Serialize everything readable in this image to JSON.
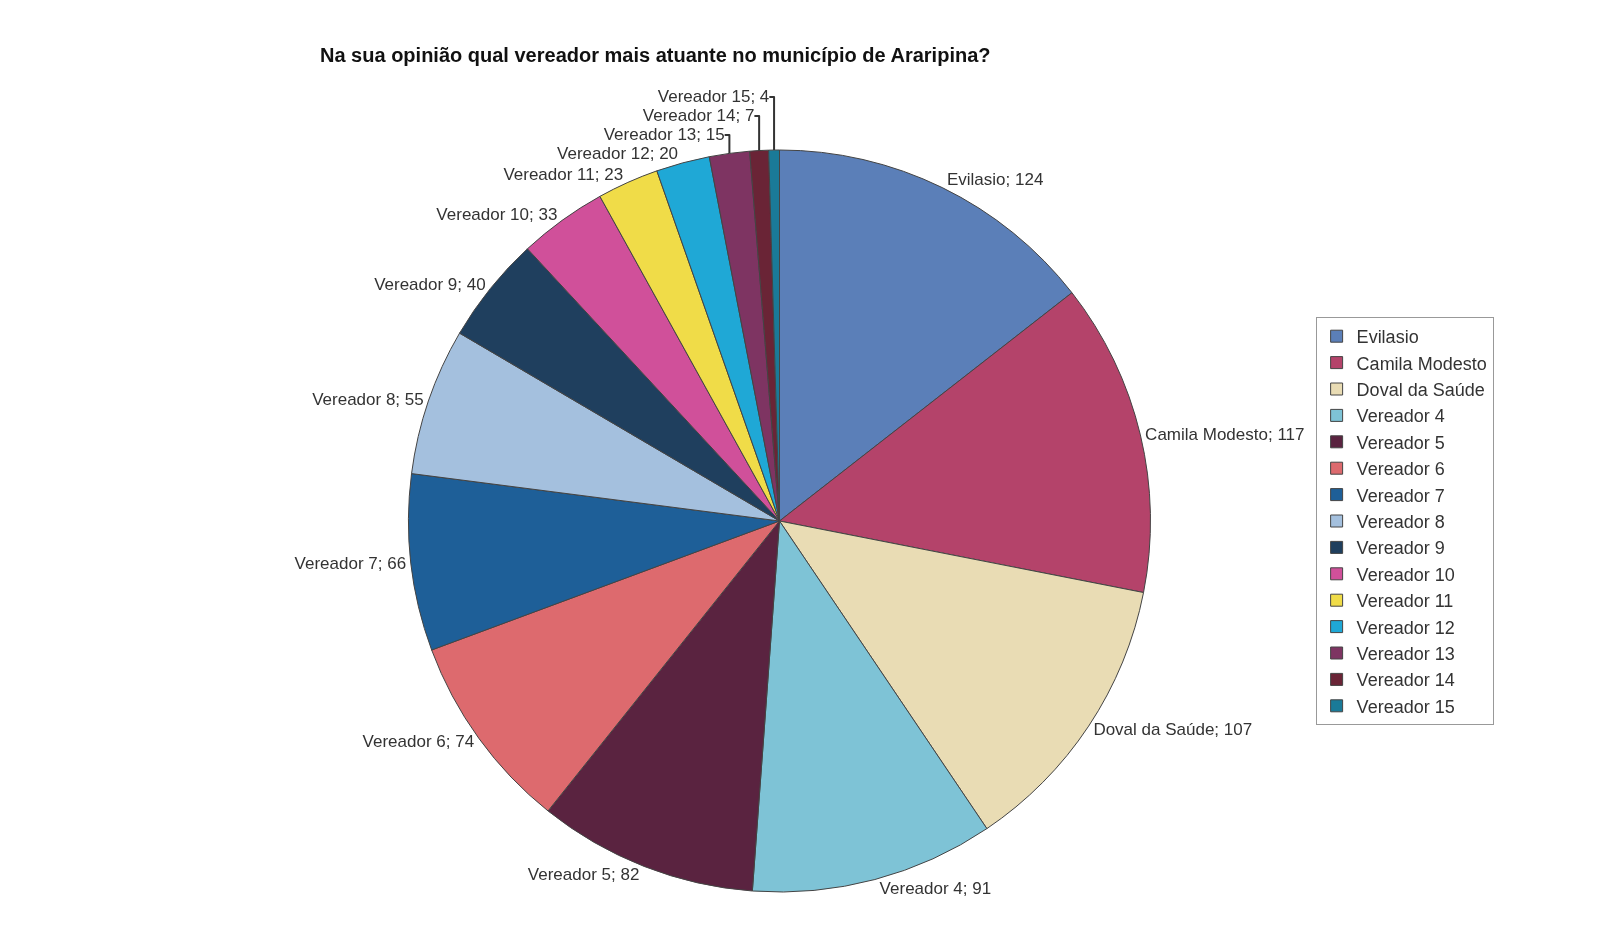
{
  "chart_data": {
    "type": "pie",
    "title": "Na sua opinião qual vereador mais atuante no município de Araripina?",
    "categories": [
      "Evilasio",
      "Camila Modesto",
      "Doval da Saúde",
      "Vereador 4",
      "Vereador 5",
      "Vereador 6",
      "Vereador 7",
      "Vereador 8",
      "Vereador 9",
      "Vereador 10",
      "Vereador 11",
      "Vereador 12",
      "Vereador 13",
      "Vereador 14",
      "Vereador 15"
    ],
    "values": [
      124,
      117,
      107,
      91,
      82,
      74,
      66,
      55,
      40,
      33,
      23,
      20,
      15,
      7,
      4
    ],
    "value_labels": [
      "Evilasio; 124",
      "Camila Modesto; 117",
      "Doval da Saúde; 107",
      "Vereador 4; 91",
      "Vereador 5; 82",
      "Vereador 6; 74",
      "Vereador 7; 66",
      "Vereador 8; 55",
      "Vereador 9; 40",
      "Vereador 10; 33",
      "Vereador 11; 23",
      "Vereador 12; 20",
      "Vereador 13; 15",
      "Vereador 14; 7",
      "Vereador 15; 4"
    ],
    "colors": [
      "#5b7fb8",
      "#b4436a",
      "#e9dcb4",
      "#7ec3d6",
      "#5a2340",
      "#dd6a6e",
      "#1e5f98",
      "#a4c0de",
      "#1f3f5e",
      "#d0509a",
      "#f0dc48",
      "#1fa8d6",
      "#7e3462",
      "#6a2436",
      "#1a7a98"
    ],
    "legend": "right"
  }
}
